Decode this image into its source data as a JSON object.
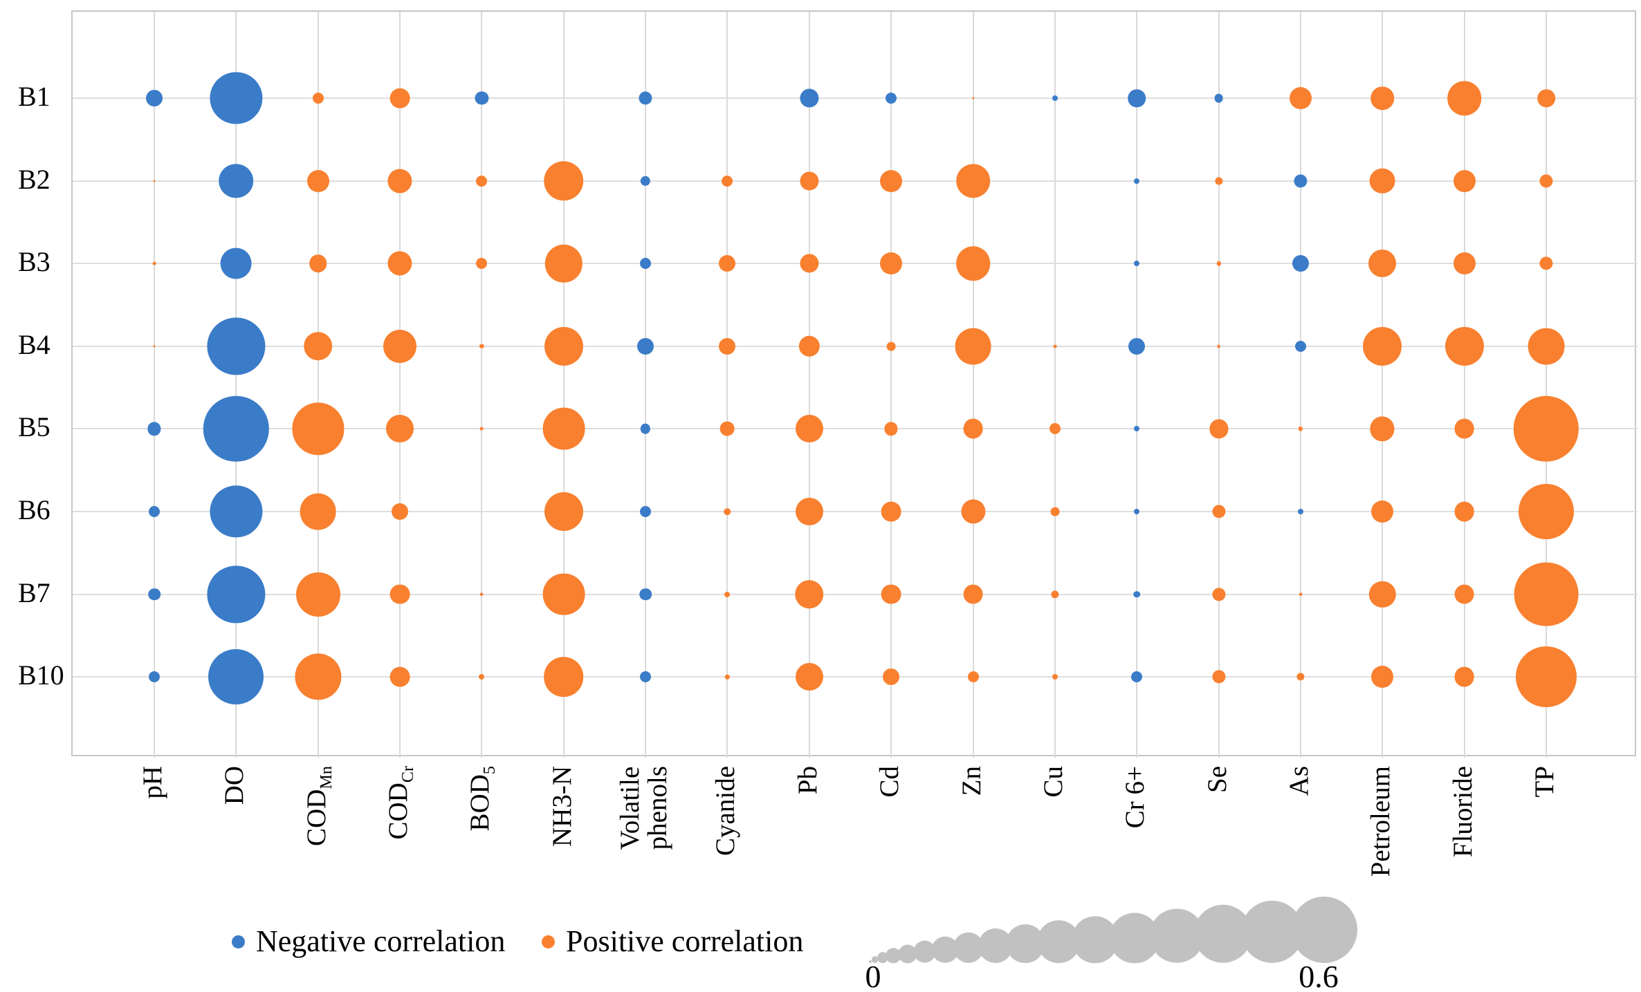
{
  "chart_data": {
    "type": "scatter",
    "subtype": "correlation-bubble-matrix",
    "title": "",
    "rows": [
      "B1",
      "B2",
      "B3",
      "B4",
      "B5",
      "B6",
      "B7",
      "B10"
    ],
    "columns": [
      {
        "label": "pH"
      },
      {
        "label": "DO"
      },
      {
        "label": "COD",
        "sub": "Mn"
      },
      {
        "label": "COD",
        "sub": "Cr"
      },
      {
        "label": "BOD",
        "sub": "5"
      },
      {
        "label": "NH3-N"
      },
      {
        "label": "Volatile phenols",
        "lines": [
          "Volatile",
          "phenols"
        ]
      },
      {
        "label": "Cyanide"
      },
      {
        "label": "Pb"
      },
      {
        "label": "Cd"
      },
      {
        "label": "Zn"
      },
      {
        "label": "Cu"
      },
      {
        "label": "Cr 6+"
      },
      {
        "label": "Se"
      },
      {
        "label": "As"
      },
      {
        "label": "Petroleum"
      },
      {
        "label": "Fluoride"
      },
      {
        "label": "TP"
      }
    ],
    "value_encoding": "signed correlation: negative = blue bubble, positive = orange bubble, |value| maps linearly to bubble radius (0 to 0.6)",
    "values": [
      [
        -0.15,
        -0.47,
        0.1,
        0.18,
        -0.12,
        0.0,
        -0.12,
        0.0,
        -0.17,
        -0.1,
        0.02,
        -0.05,
        -0.16,
        -0.08,
        0.2,
        0.21,
        0.31,
        0.16
      ],
      [
        0.02,
        -0.31,
        0.2,
        0.22,
        0.1,
        0.36,
        -0.09,
        0.1,
        0.17,
        0.2,
        0.31,
        0.0,
        -0.05,
        0.07,
        -0.12,
        0.23,
        0.2,
        0.12
      ],
      [
        0.03,
        -0.28,
        0.16,
        0.22,
        0.1,
        0.34,
        -0.1,
        0.15,
        0.17,
        0.2,
        0.31,
        0.0,
        -0.05,
        0.04,
        -0.15,
        0.25,
        0.2,
        0.12
      ],
      [
        0.02,
        -0.52,
        0.26,
        0.3,
        0.04,
        0.35,
        -0.15,
        0.15,
        0.19,
        0.08,
        0.33,
        0.03,
        -0.15,
        0.03,
        -0.1,
        0.35,
        0.35,
        0.33
      ],
      [
        -0.12,
        -0.59,
        0.47,
        0.25,
        0.03,
        0.38,
        -0.09,
        0.13,
        0.25,
        0.12,
        0.18,
        0.1,
        -0.05,
        0.17,
        0.04,
        0.22,
        0.18,
        0.59
      ],
      [
        -0.1,
        -0.47,
        0.33,
        0.15,
        0.0,
        0.35,
        -0.1,
        0.06,
        0.25,
        0.18,
        0.22,
        0.08,
        -0.05,
        0.12,
        -0.05,
        0.2,
        0.18,
        0.5
      ],
      [
        -0.11,
        -0.52,
        0.4,
        0.18,
        0.03,
        0.38,
        -0.11,
        0.05,
        0.26,
        0.18,
        0.18,
        0.07,
        -0.06,
        0.12,
        0.03,
        0.24,
        0.18,
        0.58
      ],
      [
        -0.1,
        -0.5,
        0.42,
        0.18,
        0.05,
        0.36,
        -0.1,
        0.04,
        0.25,
        0.15,
        0.1,
        0.05,
        -0.1,
        0.12,
        0.07,
        0.2,
        0.18,
        0.55
      ]
    ],
    "legend": [
      {
        "label": "Negative correlation",
        "color": "#3b7cc8"
      },
      {
        "label": "Positive correlation",
        "color": "#f8802f"
      }
    ],
    "size_scale": {
      "min": 0,
      "max": 0.6,
      "min_label": "0",
      "max_label": "0.6",
      "circle_color": "#c1c1c1"
    },
    "colors": {
      "negative": "#3b7cc8",
      "positive": "#f8802f",
      "size_legend_gray": "#c1c1c1",
      "gridline": "#d9d9d9",
      "plot_border": "#c6c6c6"
    },
    "layout_hints": {
      "grid": true,
      "legend_position": "bottom-left",
      "size_legend_position": "bottom-right"
    }
  }
}
